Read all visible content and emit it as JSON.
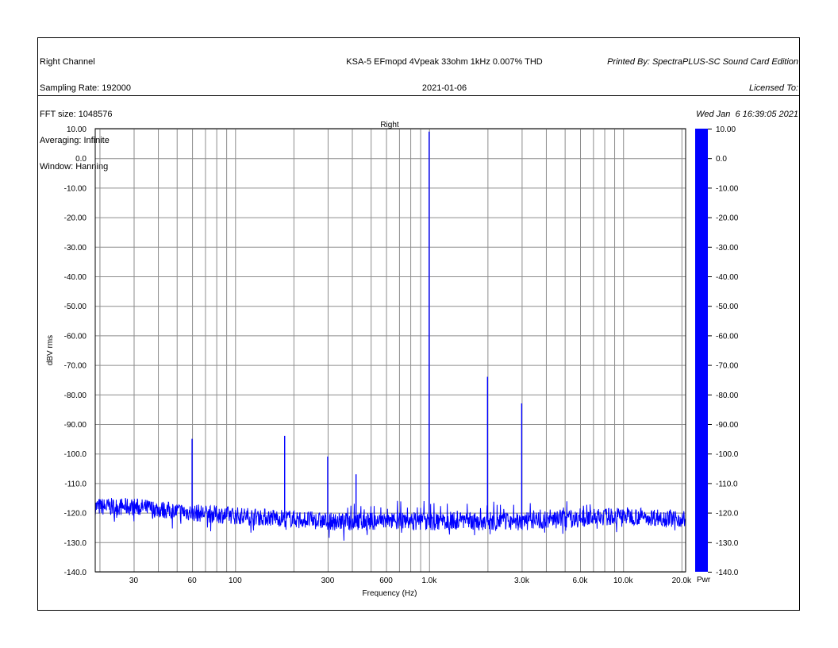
{
  "header": {
    "left": [
      "Right Channel",
      "Sampling Rate: 192000",
      "FFT size: 1048576",
      "Averaging: Infinite",
      "Window: Hanning"
    ],
    "center": [
      "KSA-5 EFmopd 4Vpeak 33ohm 1kHz 0.007% THD",
      "2021-01-06"
    ],
    "right": [
      "Printed By: SpectraPLUS-SC Sound Card Edition",
      "Licensed To:",
      "Wed Jan  6 16:39:05 2021"
    ]
  },
  "chart_data": {
    "type": "line",
    "title": "Right",
    "xlabel": "Frequency (Hz)",
    "ylabel": "dBV rms",
    "x_scale": "log",
    "xlim": [
      19,
      21000
    ],
    "ylim": [
      -140,
      10
    ],
    "grid": true,
    "y_ticks": [
      10,
      0,
      -10,
      -20,
      -30,
      -40,
      -50,
      -60,
      -70,
      -80,
      -90,
      -100,
      -110,
      -120,
      -130,
      -140
    ],
    "y_tick_labels": [
      "10.00",
      "0.0",
      "-10.00",
      "-20.00",
      "-30.00",
      "-40.00",
      "-50.00",
      "-60.00",
      "-70.00",
      "-80.00",
      "-90.00",
      "-100.0",
      "-110.0",
      "-120.0",
      "-130.0",
      "-140.0"
    ],
    "x_ticks": [
      30,
      60,
      100,
      300,
      600,
      1000,
      3000,
      6000,
      10000,
      20000
    ],
    "x_tick_labels": [
      "30",
      "60",
      "100",
      "300",
      "600",
      "1.0k",
      "3.0k",
      "6.0k",
      "10.0k",
      "20.0k"
    ],
    "series": [
      {
        "color": "#0000ff",
        "noise_floor": [
          [
            19,
            -118
          ],
          [
            30,
            -118
          ],
          [
            60,
            -120
          ],
          [
            100,
            -121
          ],
          [
            200,
            -122
          ],
          [
            300,
            -123
          ],
          [
            600,
            -123
          ],
          [
            1000,
            -123
          ],
          [
            3000,
            -123
          ],
          [
            6000,
            -122
          ],
          [
            10000,
            -121
          ],
          [
            20000,
            -122
          ],
          [
            21000,
            -122
          ]
        ],
        "peaks": [
          {
            "x": 60,
            "y": -95
          },
          {
            "x": 180,
            "y": -94
          },
          {
            "x": 300,
            "y": -101
          },
          {
            "x": 420,
            "y": -107
          },
          {
            "x": 1000,
            "y": 9
          },
          {
            "x": 2000,
            "y": -74
          },
          {
            "x": 3000,
            "y": -83
          }
        ],
        "spur_range_hz": [
          360,
          6800
        ],
        "spur_level": -116
      }
    ],
    "colorbar": {
      "label": "Pwr",
      "color": "#0000ff",
      "y_tick_labels": [
        "10.00",
        "0.0",
        "-10.00",
        "-20.00",
        "-30.00",
        "-40.00",
        "-50.00",
        "-60.00",
        "-70.00",
        "-80.00",
        "-90.00",
        "-100.0",
        "-110.0",
        "-120.0",
        "-130.0",
        "-140.0"
      ]
    }
  }
}
